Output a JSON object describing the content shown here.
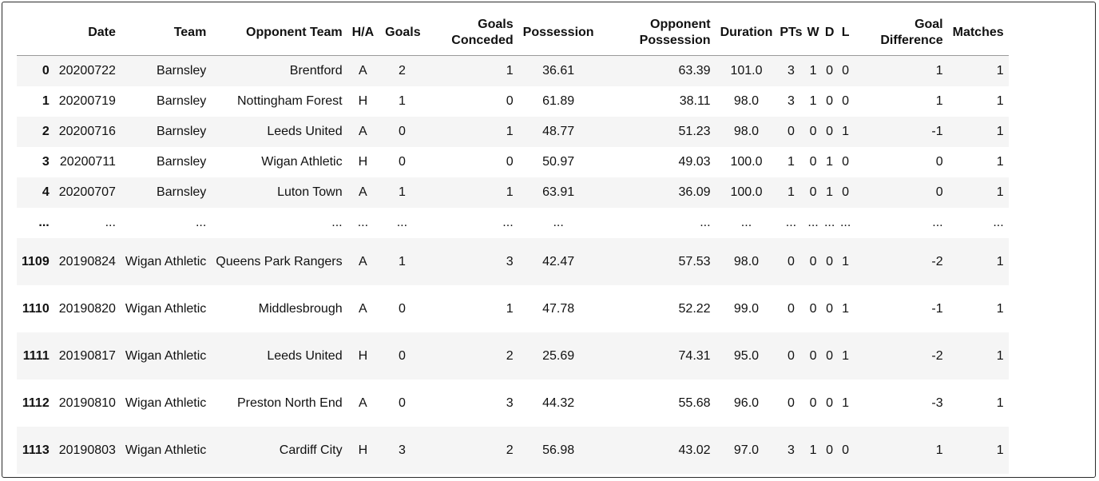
{
  "columns": [
    "",
    "Date",
    "Team",
    "Opponent Team",
    "H/A",
    "Goals",
    "Goals Conceded",
    "Possession",
    "Opponent Possession",
    "Duration",
    "PTs",
    "W",
    "D",
    "L",
    "Goal Difference",
    "Matches"
  ],
  "rows": [
    {
      "idx": "0",
      "date": "20200722",
      "team": "Barnsley",
      "opp": "Brentford",
      "ha": "A",
      "goals": "2",
      "gc": "1",
      "pos": "36.61",
      "opos": "63.39",
      "dur": "101.0",
      "pts": "3",
      "w": "1",
      "d": "0",
      "l": "0",
      "gd": "1",
      "m": "1"
    },
    {
      "idx": "1",
      "date": "20200719",
      "team": "Barnsley",
      "opp": "Nottingham Forest",
      "ha": "H",
      "goals": "1",
      "gc": "0",
      "pos": "61.89",
      "opos": "38.11",
      "dur": "98.0",
      "pts": "3",
      "w": "1",
      "d": "0",
      "l": "0",
      "gd": "1",
      "m": "1"
    },
    {
      "idx": "2",
      "date": "20200716",
      "team": "Barnsley",
      "opp": "Leeds United",
      "ha": "A",
      "goals": "0",
      "gc": "1",
      "pos": "48.77",
      "opos": "51.23",
      "dur": "98.0",
      "pts": "0",
      "w": "0",
      "d": "0",
      "l": "1",
      "gd": "-1",
      "m": "1"
    },
    {
      "idx": "3",
      "date": "20200711",
      "team": "Barnsley",
      "opp": "Wigan Athletic",
      "ha": "H",
      "goals": "0",
      "gc": "0",
      "pos": "50.97",
      "opos": "49.03",
      "dur": "100.0",
      "pts": "1",
      "w": "0",
      "d": "1",
      "l": "0",
      "gd": "0",
      "m": "1"
    },
    {
      "idx": "4",
      "date": "20200707",
      "team": "Barnsley",
      "opp": "Luton Town",
      "ha": "A",
      "goals": "1",
      "gc": "1",
      "pos": "63.91",
      "opos": "36.09",
      "dur": "100.0",
      "pts": "1",
      "w": "0",
      "d": "1",
      "l": "0",
      "gd": "0",
      "m": "1"
    },
    {
      "idx": "...",
      "date": "...",
      "team": "...",
      "opp": "...",
      "ha": "...",
      "goals": "...",
      "gc": "...",
      "pos": "...",
      "opos": "...",
      "dur": "...",
      "pts": "...",
      "w": "...",
      "d": "...",
      "l": "...",
      "gd": "...",
      "m": "..."
    },
    {
      "idx": "1109",
      "date": "20190824",
      "team": "Wigan Athletic",
      "opp": "Queens Park Rangers",
      "ha": "A",
      "goals": "1",
      "gc": "3",
      "pos": "42.47",
      "opos": "57.53",
      "dur": "98.0",
      "pts": "0",
      "w": "0",
      "d": "0",
      "l": "1",
      "gd": "-2",
      "m": "1"
    },
    {
      "idx": "1110",
      "date": "20190820",
      "team": "Wigan Athletic",
      "opp": "Middlesbrough",
      "ha": "A",
      "goals": "0",
      "gc": "1",
      "pos": "47.78",
      "opos": "52.22",
      "dur": "99.0",
      "pts": "0",
      "w": "0",
      "d": "0",
      "l": "1",
      "gd": "-1",
      "m": "1"
    },
    {
      "idx": "1111",
      "date": "20190817",
      "team": "Wigan Athletic",
      "opp": "Leeds United",
      "ha": "H",
      "goals": "0",
      "gc": "2",
      "pos": "25.69",
      "opos": "74.31",
      "dur": "95.0",
      "pts": "0",
      "w": "0",
      "d": "0",
      "l": "1",
      "gd": "-2",
      "m": "1"
    },
    {
      "idx": "1112",
      "date": "20190810",
      "team": "Wigan Athletic",
      "opp": "Preston North End",
      "ha": "A",
      "goals": "0",
      "gc": "3",
      "pos": "44.32",
      "opos": "55.68",
      "dur": "96.0",
      "pts": "0",
      "w": "0",
      "d": "0",
      "l": "1",
      "gd": "-3",
      "m": "1"
    },
    {
      "idx": "1113",
      "date": "20190803",
      "team": "Wigan Athletic",
      "opp": "Cardiff City",
      "ha": "H",
      "goals": "3",
      "gc": "2",
      "pos": "56.98",
      "opos": "43.02",
      "dur": "97.0",
      "pts": "3",
      "w": "1",
      "d": "0",
      "l": "0",
      "gd": "1",
      "m": "1"
    }
  ]
}
